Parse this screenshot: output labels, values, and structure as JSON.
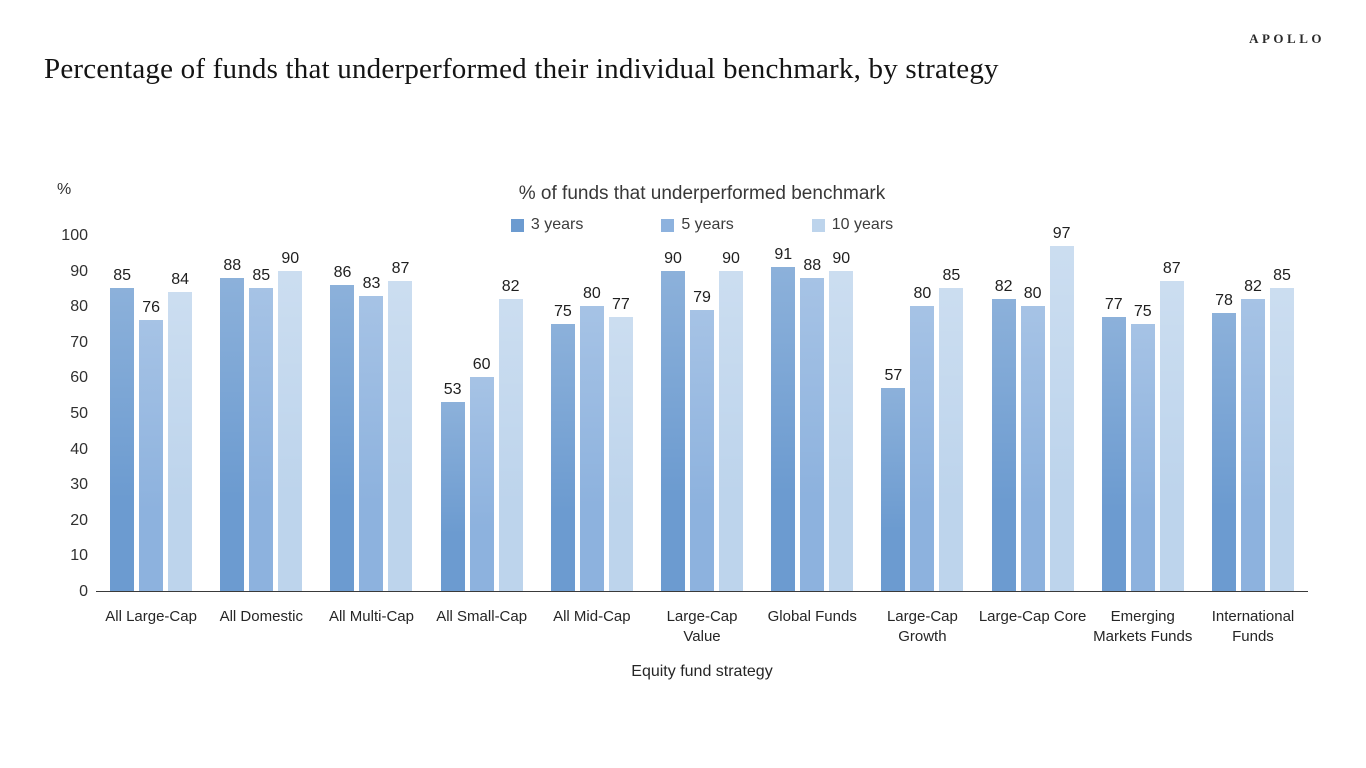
{
  "logo": "APOLLO",
  "page_title": "Percentage of funds that underperformed their individual benchmark, by strategy",
  "chart_data": {
    "type": "bar",
    "title": "% of funds that underperformed benchmark",
    "xlabel": "Equity fund strategy",
    "ylabel": "%",
    "ylim": [
      0,
      100
    ],
    "yticks": [
      0,
      10,
      20,
      30,
      40,
      50,
      60,
      70,
      80,
      90,
      100
    ],
    "grid": false,
    "legend_position": "top",
    "categories": [
      "All Large-Cap",
      "All Domestic",
      "All Multi-Cap",
      "All Small-Cap",
      "All Mid-Cap",
      "Large-Cap Value",
      "Global Funds",
      "Large-Cap Growth",
      "Large-Cap Core",
      "Emerging Markets Funds",
      "International Funds"
    ],
    "series": [
      {
        "name": "3 years",
        "color": "#6c9bd0",
        "values": [
          85,
          88,
          86,
          53,
          75,
          90,
          91,
          57,
          82,
          77,
          78
        ]
      },
      {
        "name": "5 years",
        "color": "#8db2de",
        "values": [
          76,
          85,
          83,
          60,
          80,
          79,
          88,
          80,
          80,
          75,
          82
        ]
      },
      {
        "name": "10 years",
        "color": "#bdd4ec",
        "values": [
          84,
          90,
          87,
          82,
          77,
          90,
          90,
          85,
          97,
          87,
          85
        ]
      }
    ]
  }
}
